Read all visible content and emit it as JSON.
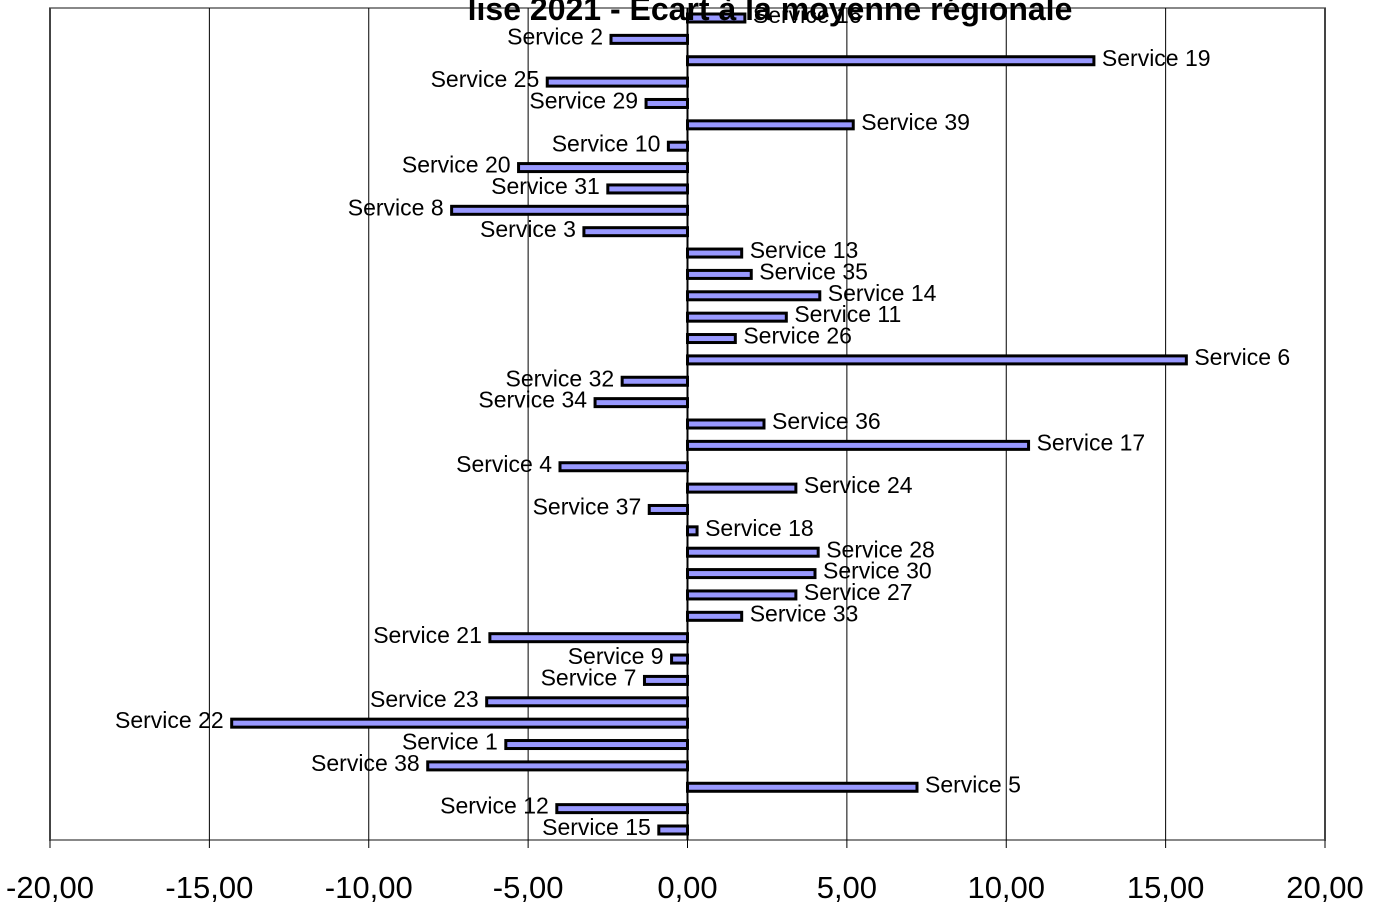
{
  "chart_data": {
    "type": "barh",
    "title": "lise 2021 - Ecart à la moyenne régionale",
    "categories": [
      "Service 16",
      "Service 2",
      "Service 19",
      "Service 25",
      "Service 29",
      "Service 39",
      "Service 10",
      "Service 20",
      "Service 31",
      "Service 8",
      "Service 3",
      "Service 13",
      "Service 35",
      "Service 14",
      "Service 11",
      "Service 26",
      "Service 6",
      "Service 32",
      "Service 34",
      "Service 36",
      "Service 17",
      "Service 4",
      "Service 24",
      "Service 37",
      "Service 18",
      "Service 28",
      "Service 30",
      "Service 27",
      "Service 33",
      "Service 21",
      "Service 9",
      "Service 7",
      "Service 23",
      "Service 22",
      "Service 1",
      "Service 38",
      "Service 5",
      "Service 12",
      "Service 15"
    ],
    "values": [
      1.8,
      -2.4,
      12.75,
      -4.4,
      -1.3,
      5.2,
      -0.6,
      -5.3,
      -2.5,
      -7.4,
      -3.25,
      1.7,
      2.0,
      4.15,
      3.1,
      1.5,
      15.65,
      -2.05,
      -2.9,
      2.4,
      10.7,
      -4.0,
      3.4,
      -1.2,
      0.3,
      4.1,
      4.0,
      3.4,
      1.7,
      -6.2,
      -0.5,
      -1.35,
      -6.3,
      -14.3,
      -5.7,
      -8.15,
      7.2,
      -4.1,
      -0.9
    ],
    "color": "#9999ff",
    "xlim": [
      -20,
      20
    ],
    "xticks": [
      {
        "value": -20,
        "label": "-20,00"
      },
      {
        "value": -15,
        "label": "-15,00"
      },
      {
        "value": -10,
        "label": "-10,00"
      },
      {
        "value": -5,
        "label": "-5,00"
      },
      {
        "value": 0,
        "label": "0,00"
      },
      {
        "value": 5,
        "label": "5,00"
      },
      {
        "value": 10,
        "label": "10,00"
      },
      {
        "value": 15,
        "label": "15,00"
      },
      {
        "value": 20,
        "label": "20,00"
      }
    ],
    "grid": true
  }
}
